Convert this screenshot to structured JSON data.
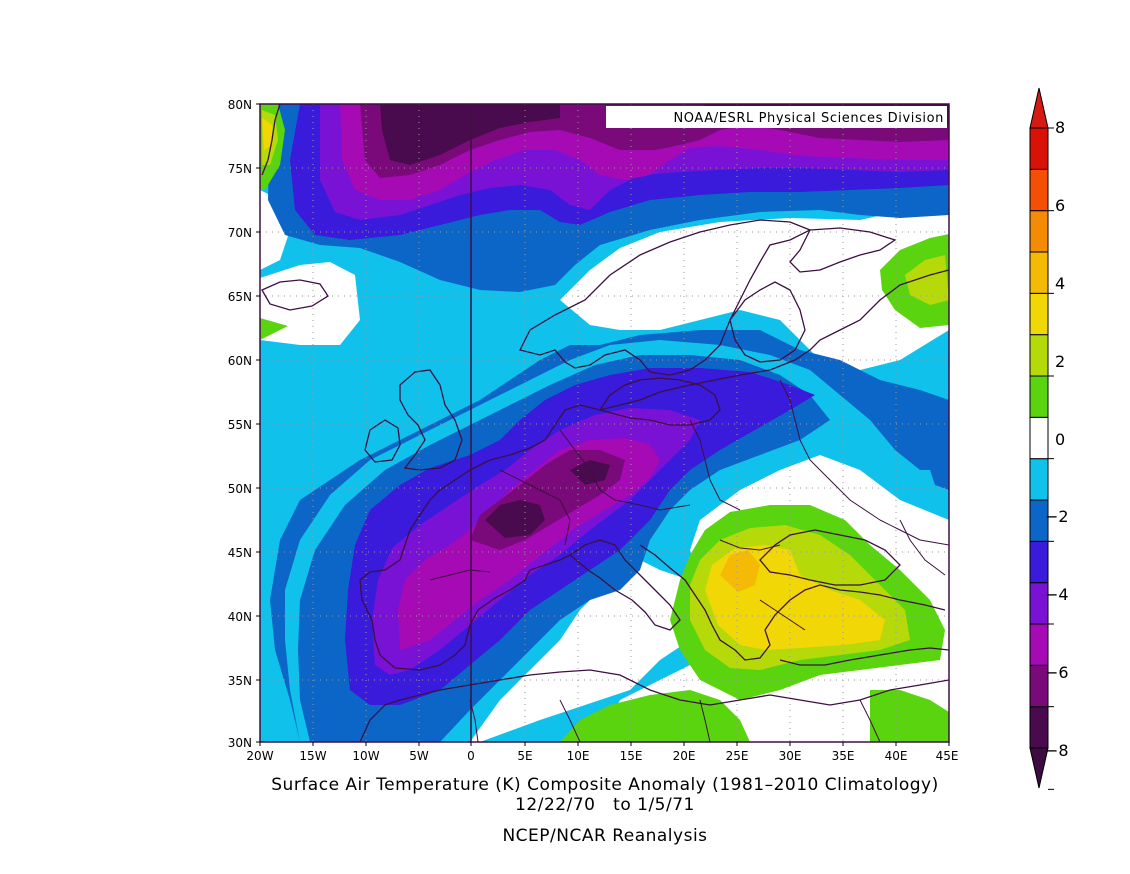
{
  "credit": "NOAA/ESRL Physical Sciences Division",
  "caption": {
    "title": "Surface Air Temperature (K) Composite Anomaly (1981–2010 Climatology)",
    "dates": "12/22/70   to 1/5/71",
    "source": "NCEP/NCAR Reanalysis"
  },
  "axes": {
    "lat_ticks": [
      "80N",
      "75N",
      "70N",
      "65N",
      "60N",
      "55N",
      "50N",
      "45N",
      "40N",
      "35N",
      "30N"
    ],
    "lon_ticks": [
      "20W",
      "15W",
      "10W",
      "5W",
      "0",
      "5E",
      "10E",
      "15E",
      "20E",
      "25E",
      "30E",
      "35E",
      "40E",
      "45E"
    ],
    "lat_range": [
      30,
      80
    ],
    "lon_range": [
      -20,
      45
    ]
  },
  "colorbar": {
    "labels": [
      "8",
      "6",
      "4",
      "2",
      "0",
      "−2",
      "−4",
      "−6",
      "−8"
    ],
    "levels": [
      -8,
      -7,
      -6,
      -5,
      -4,
      -3,
      -2,
      -1,
      1,
      2,
      3,
      4,
      5,
      6,
      7,
      8
    ],
    "colors": [
      "#4a0a4e",
      "#7a0a7a",
      "#a50ab5",
      "#7a12d6",
      "#3a1adb",
      "#0c66c8",
      "#10c2eb",
      "#ffffff",
      "#5ad40e",
      "#b6d90a",
      "#f0d705",
      "#f5ba05",
      "#f58b05",
      "#f54f05",
      "#d81206"
    ],
    "under_color": "#3d0a42",
    "over_color": "#d41a12"
  },
  "colors": {
    "ocean_bg": "#10c2eb",
    "coast": "#3d1042",
    "grid": "#9a9a9a",
    "frame": "#3d1042"
  }
}
